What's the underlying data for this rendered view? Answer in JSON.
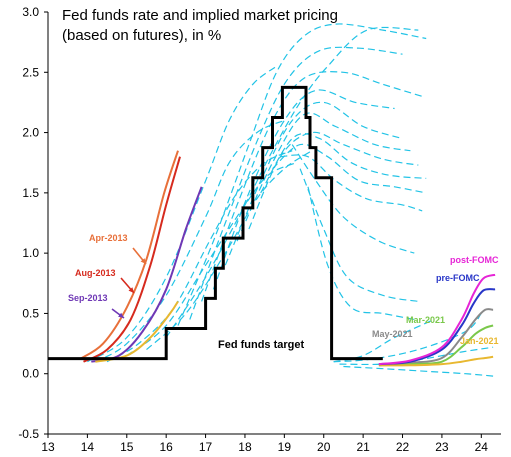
{
  "chart_data": {
    "type": "line",
    "title_lines": [
      "Fed funds rate and implied market pricing",
      "(based on futures), in %"
    ],
    "xlabel": "",
    "ylabel": "",
    "xlim": [
      13,
      24.5
    ],
    "ylim": [
      -0.5,
      3.0
    ],
    "x_ticks": [
      "13",
      "14",
      "15",
      "16",
      "17",
      "18",
      "19",
      "20",
      "21",
      "22",
      "23",
      "24"
    ],
    "y_ticks": [
      "-0.5",
      "0.0",
      "0.5",
      "1.0",
      "1.5",
      "2.0",
      "2.5",
      "3.0"
    ],
    "grid": false,
    "fed_funds_target": {
      "name": "Fed funds target",
      "color": "#000000",
      "points": [
        [
          13,
          0.125
        ],
        [
          16,
          0.125
        ],
        [
          16,
          0.375
        ],
        [
          17,
          0.375
        ],
        [
          17,
          0.625
        ],
        [
          17.25,
          0.625
        ],
        [
          17.25,
          0.875
        ],
        [
          17.45,
          0.875
        ],
        [
          17.45,
          1.125
        ],
        [
          17.95,
          1.125
        ],
        [
          17.95,
          1.375
        ],
        [
          18.2,
          1.375
        ],
        [
          18.2,
          1.625
        ],
        [
          18.45,
          1.625
        ],
        [
          18.45,
          1.875
        ],
        [
          18.7,
          1.875
        ],
        [
          18.7,
          2.125
        ],
        [
          18.95,
          2.125
        ],
        [
          18.95,
          2.375
        ],
        [
          19.55,
          2.375
        ],
        [
          19.55,
          2.125
        ],
        [
          19.65,
          2.125
        ],
        [
          19.65,
          1.875
        ],
        [
          19.8,
          1.875
        ],
        [
          19.8,
          1.625
        ],
        [
          20.2,
          1.625
        ],
        [
          20.2,
          0.125
        ],
        [
          21.5,
          0.125
        ]
      ]
    },
    "historical_pricing": {
      "color": "#22c3e6",
      "style": "dashed",
      "curves": [
        [
          [
            14,
            0.1
          ],
          [
            15,
            0.3
          ],
          [
            16,
            0.8
          ],
          [
            17,
            1.6
          ],
          [
            17.6,
            2.1
          ],
          [
            18.2,
            2.4
          ],
          [
            18.8,
            2.55
          ]
        ],
        [
          [
            14.2,
            0.1
          ],
          [
            15,
            0.25
          ],
          [
            16,
            0.65
          ],
          [
            17,
            1.3
          ],
          [
            17.6,
            1.75
          ],
          [
            18.3,
            2.0
          ],
          [
            19,
            2.1
          ]
        ],
        [
          [
            14.5,
            0.1
          ],
          [
            15.3,
            0.25
          ],
          [
            16.2,
            0.55
          ],
          [
            17.1,
            1.1
          ],
          [
            17.8,
            1.5
          ],
          [
            18.5,
            1.75
          ],
          [
            19.2,
            1.85
          ]
        ],
        [
          [
            15,
            0.15
          ],
          [
            16,
            0.4
          ],
          [
            17,
            0.9
          ],
          [
            18,
            1.4
          ],
          [
            18.6,
            1.65
          ],
          [
            19.3,
            1.75
          ]
        ],
        [
          [
            15.5,
            0.2
          ],
          [
            16.5,
            0.5
          ],
          [
            17.5,
            1.0
          ],
          [
            18.3,
            1.45
          ],
          [
            19,
            1.7
          ],
          [
            19.7,
            1.85
          ]
        ],
        [
          [
            16,
            0.3
          ],
          [
            17,
            0.8
          ],
          [
            18,
            1.4
          ],
          [
            18.7,
            1.85
          ],
          [
            19.4,
            2.25
          ],
          [
            20.1,
            2.55
          ],
          [
            21.1,
            2.85
          ],
          [
            22.4,
            2.85
          ]
        ],
        [
          [
            16.3,
            0.4
          ],
          [
            17.2,
            1.1
          ],
          [
            18.1,
            1.9
          ],
          [
            18.8,
            2.5
          ],
          [
            19.5,
            2.8
          ],
          [
            20.3,
            2.9
          ],
          [
            21.5,
            2.85
          ],
          [
            22.6,
            2.78
          ]
        ],
        [
          [
            16.6,
            0.45
          ],
          [
            17.5,
            1.25
          ],
          [
            18.4,
            2.0
          ],
          [
            19.1,
            2.45
          ],
          [
            19.9,
            2.68
          ],
          [
            20.9,
            2.7
          ],
          [
            22,
            2.65
          ]
        ],
        [
          [
            16.9,
            0.6
          ],
          [
            17.8,
            1.4
          ],
          [
            18.7,
            2.1
          ],
          [
            19.5,
            2.45
          ],
          [
            20.5,
            2.5
          ],
          [
            21.5,
            2.4
          ],
          [
            22.5,
            2.3
          ]
        ],
        [
          [
            17.2,
            0.7
          ],
          [
            18.1,
            1.5
          ],
          [
            19,
            2.1
          ],
          [
            19.8,
            2.35
          ],
          [
            20.8,
            2.25
          ],
          [
            21.8,
            2.2
          ]
        ],
        [
          [
            17.5,
            0.9
          ],
          [
            18.4,
            1.6
          ],
          [
            19.2,
            2.1
          ],
          [
            20,
            2.25
          ],
          [
            21,
            2.05
          ],
          [
            22,
            1.95
          ]
        ],
        [
          [
            17.8,
            1.1
          ],
          [
            18.7,
            1.75
          ],
          [
            19.5,
            2.15
          ],
          [
            20.3,
            2.05
          ],
          [
            21.3,
            1.9
          ],
          [
            22.2,
            1.85
          ]
        ],
        [
          [
            18.1,
            1.2
          ],
          [
            18.9,
            1.8
          ],
          [
            19.7,
            2.0
          ],
          [
            20.5,
            1.9
          ],
          [
            21.5,
            1.78
          ],
          [
            22.4,
            1.73
          ]
        ],
        [
          [
            18.4,
            1.5
          ],
          [
            19.2,
            1.95
          ],
          [
            19.9,
            1.95
          ],
          [
            20.7,
            1.75
          ],
          [
            21.6,
            1.65
          ],
          [
            22.6,
            1.62
          ]
        ],
        [
          [
            18.7,
            1.7
          ],
          [
            19.4,
            1.9
          ],
          [
            20.1,
            1.8
          ],
          [
            20.9,
            1.6
          ],
          [
            21.8,
            1.55
          ],
          [
            22.6,
            1.5
          ]
        ],
        [
          [
            18.9,
            1.8
          ],
          [
            19.6,
            1.8
          ],
          [
            20.3,
            1.6
          ],
          [
            21.1,
            1.45
          ],
          [
            22,
            1.4
          ],
          [
            22.5,
            1.35
          ]
        ],
        [
          [
            19.2,
            1.9
          ],
          [
            19.8,
            1.6
          ],
          [
            20.5,
            1.3
          ],
          [
            21.4,
            1.1
          ],
          [
            22.3,
            1.0
          ]
        ],
        [
          [
            19.4,
            1.7
          ],
          [
            20,
            1.2
          ],
          [
            20.6,
            0.8
          ],
          [
            21.5,
            0.65
          ],
          [
            22.4,
            0.6
          ]
        ],
        [
          [
            19.6,
            1.55
          ],
          [
            20.1,
            0.9
          ],
          [
            20.7,
            0.55
          ],
          [
            21.5,
            0.5
          ],
          [
            22.3,
            0.45
          ]
        ],
        [
          [
            20.25,
            0.1
          ],
          [
            21,
            0.15
          ],
          [
            21.8,
            0.3
          ],
          [
            22.8,
            0.45
          ]
        ],
        [
          [
            20.25,
            0.1
          ],
          [
            21.2,
            0.12
          ],
          [
            22.4,
            0.2
          ],
          [
            23.6,
            0.35
          ],
          [
            24,
            0.5
          ]
        ],
        [
          [
            20.4,
            0.08
          ],
          [
            21.5,
            0.08
          ],
          [
            22.5,
            0.12
          ],
          [
            23.5,
            0.18
          ],
          [
            24.3,
            0.22
          ]
        ],
        [
          [
            20.5,
            0.06
          ],
          [
            21.6,
            0.04
          ],
          [
            22.6,
            0.02
          ],
          [
            23.6,
            0.0
          ],
          [
            24.3,
            -0.02
          ]
        ]
      ]
    },
    "highlighted_series": [
      {
        "name": "Apr-2013",
        "color": "#e8703a",
        "points": [
          [
            13.8,
            0.12
          ],
          [
            14.4,
            0.25
          ],
          [
            15,
            0.55
          ],
          [
            15.5,
            0.95
          ],
          [
            15.95,
            1.5
          ],
          [
            16.3,
            1.85
          ]
        ]
      },
      {
        "name": "Aug-2013",
        "color": "#d62a1e",
        "points": [
          [
            13.9,
            0.1
          ],
          [
            14.5,
            0.2
          ],
          [
            15.1,
            0.45
          ],
          [
            15.6,
            0.9
          ],
          [
            16,
            1.4
          ],
          [
            16.35,
            1.8
          ]
        ]
      },
      {
        "name": "Sep-2013",
        "color": "#6f38b5",
        "points": [
          [
            14.1,
            0.1
          ],
          [
            14.8,
            0.15
          ],
          [
            15.4,
            0.35
          ],
          [
            16,
            0.7
          ],
          [
            16.5,
            1.2
          ],
          [
            16.9,
            1.55
          ]
        ]
      },
      {
        "name": "",
        "color": "#e8b830",
        "points": [
          [
            14.2,
            0.1
          ],
          [
            15,
            0.15
          ],
          [
            15.6,
            0.3
          ],
          [
            16.1,
            0.5
          ],
          [
            16.3,
            0.6
          ]
        ]
      },
      {
        "name": "May-2021",
        "color": "#8a8a8a",
        "points": [
          [
            21.4,
            0.07
          ],
          [
            22.2,
            0.09
          ],
          [
            23,
            0.13
          ],
          [
            23.5,
            0.3
          ],
          [
            23.85,
            0.45
          ],
          [
            24.1,
            0.53
          ],
          [
            24.3,
            0.53
          ]
        ]
      },
      {
        "name": "Mar-2021",
        "color": "#7ac84a",
        "points": [
          [
            21.4,
            0.07
          ],
          [
            22.2,
            0.08
          ],
          [
            23,
            0.1
          ],
          [
            23.5,
            0.22
          ],
          [
            23.85,
            0.33
          ],
          [
            24.1,
            0.38
          ],
          [
            24.3,
            0.4
          ]
        ]
      },
      {
        "name": "Jan-2021",
        "color": "#e8b830",
        "points": [
          [
            21.4,
            0.07
          ],
          [
            22.2,
            0.07
          ],
          [
            23,
            0.08
          ],
          [
            23.5,
            0.1
          ],
          [
            23.85,
            0.12
          ],
          [
            24.1,
            0.13
          ],
          [
            24.3,
            0.14
          ]
        ]
      },
      {
        "name": "pre-FOMC",
        "color": "#2836c8",
        "points": [
          [
            21.4,
            0.08
          ],
          [
            22.2,
            0.1
          ],
          [
            23,
            0.2
          ],
          [
            23.5,
            0.4
          ],
          [
            23.8,
            0.58
          ],
          [
            24.05,
            0.69
          ],
          [
            24.35,
            0.7
          ]
        ]
      },
      {
        "name": "post-FOMC",
        "color": "#e624d6",
        "points": [
          [
            21.4,
            0.08
          ],
          [
            22.2,
            0.11
          ],
          [
            23,
            0.22
          ],
          [
            23.5,
            0.45
          ],
          [
            23.8,
            0.66
          ],
          [
            24.05,
            0.79
          ],
          [
            24.35,
            0.82
          ]
        ]
      }
    ],
    "annotations": [
      {
        "text": "Apr-2013",
        "color": "#e8703a"
      },
      {
        "text": "Aug-2013",
        "color": "#d62a1e"
      },
      {
        "text": "Sep-2013",
        "color": "#6f38b5"
      },
      {
        "text": "Fed funds target",
        "color": "#000000"
      },
      {
        "text": "post-FOMC",
        "color": "#e624d6"
      },
      {
        "text": "pre-FOMC",
        "color": "#2836c8"
      },
      {
        "text": "Mar-2021",
        "color": "#7ac84a"
      },
      {
        "text": "May-2021",
        "color": "#8a8a8a"
      },
      {
        "text": "Jan-2021",
        "color": "#e8b830"
      }
    ]
  }
}
